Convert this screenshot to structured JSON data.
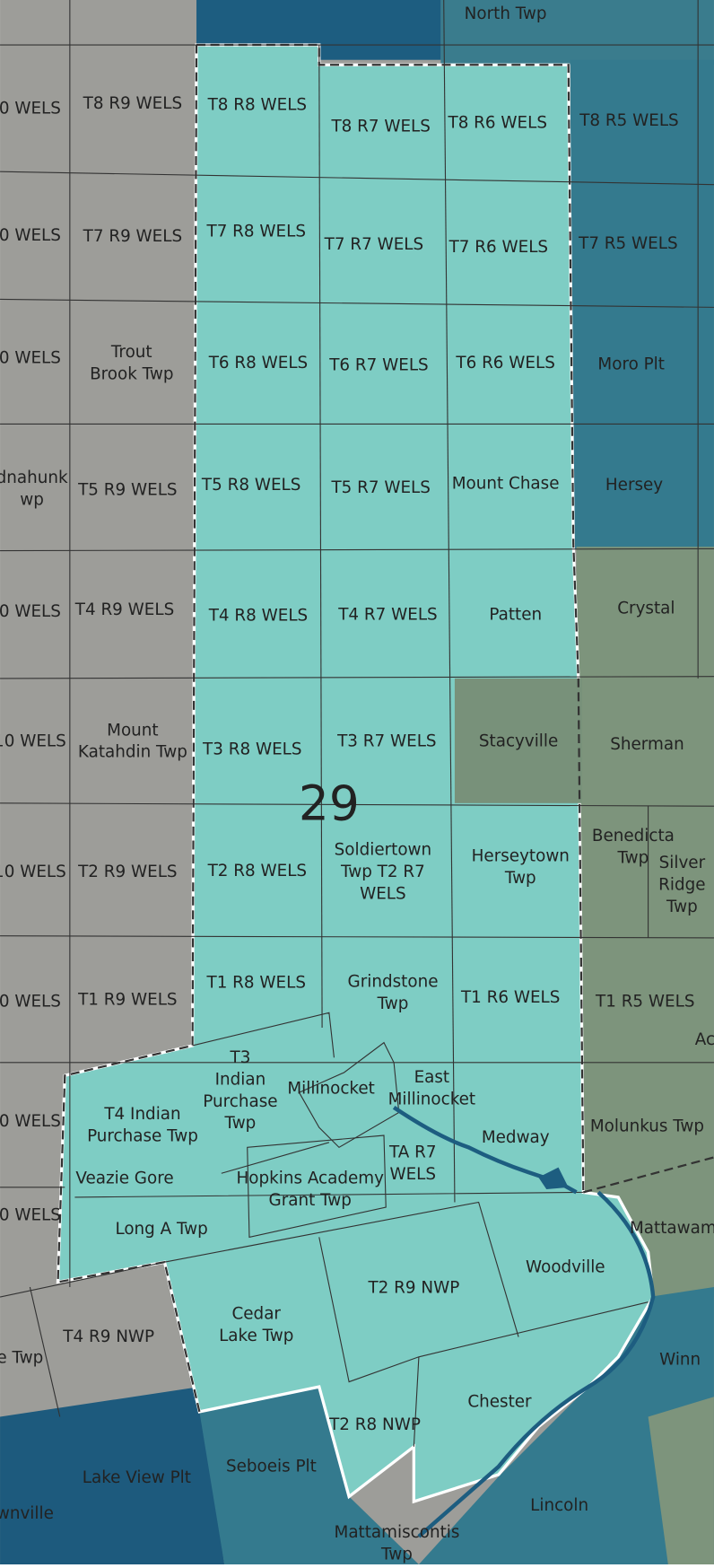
{
  "district_label": "29",
  "labels": [
    [
      "North Twp"
    ],
    [
      "0 WELS"
    ],
    [
      "0 WELS"
    ],
    [
      "0 WELS"
    ],
    [
      "dnahunk",
      "wp"
    ],
    [
      "0 WELS"
    ],
    [
      "10 WELS"
    ],
    [
      "10 WELS"
    ],
    [
      "0 WELS"
    ],
    [
      "0 WELS"
    ],
    [
      "0 WELS"
    ],
    [
      "e Twp"
    ],
    [
      "wnville"
    ],
    [
      "T8 R9 WELS"
    ],
    [
      "T7 R9 WELS"
    ],
    [
      "Trout",
      "Brook Twp"
    ],
    [
      "T5 R9 WELS"
    ],
    [
      "T4 R9 WELS"
    ],
    [
      "Mount",
      "Katahdin Twp"
    ],
    [
      "T2 R9 WELS"
    ],
    [
      "T1 R9 WELS"
    ],
    [
      "T8 R8 WELS"
    ],
    [
      "T8 R7 WELS"
    ],
    [
      "T8 R6 WELS"
    ],
    [
      "T7 R8 WELS"
    ],
    [
      "T7 R7 WELS"
    ],
    [
      "T7 R6 WELS"
    ],
    [
      "T6 R8 WELS"
    ],
    [
      "T6 R7 WELS"
    ],
    [
      "T6 R6 WELS"
    ],
    [
      "T5 R8 WELS"
    ],
    [
      "T5 R7 WELS"
    ],
    [
      "Mount Chase"
    ],
    [
      "T4 R8 WELS"
    ],
    [
      "T4 R7 WELS"
    ],
    [
      "Patten"
    ],
    [
      "T3 R8 WELS"
    ],
    [
      "T3 R7 WELS"
    ],
    [
      "Stacyville"
    ],
    [
      "T2 R8 WELS"
    ],
    [
      "Soldiertown",
      "Twp T2 R7",
      "WELS"
    ],
    [
      "Herseytown",
      "Twp"
    ],
    [
      "T1 R8 WELS"
    ],
    [
      "Grindstone",
      "Twp"
    ],
    [
      "T1 R6 WELS"
    ],
    [
      "T3",
      "Indian",
      "Purchase",
      "Twp"
    ],
    [
      "T4 Indian",
      "Purchase Twp"
    ],
    [
      "Millinocket"
    ],
    [
      "East",
      "Millinocket"
    ],
    [
      "Medway"
    ],
    [
      "TA R7",
      "WELS"
    ],
    [
      "Veazie Gore"
    ],
    [
      "Hopkins Academy",
      "Grant Twp"
    ],
    [
      "Long A Twp"
    ],
    [
      "Woodville"
    ],
    [
      "T2 R9 NWP"
    ],
    [
      "Cedar",
      "Lake Twp"
    ],
    [
      "T4 R9 NWP"
    ],
    [
      "Chester"
    ],
    [
      "T2 R8 NWP"
    ],
    [
      "Seboeis Plt"
    ],
    [
      "Lake View Plt"
    ],
    [
      "Lincoln"
    ],
    [
      "Mattamiscontis",
      "Twp"
    ],
    [
      "Winn"
    ],
    [
      "Mattawam"
    ],
    [
      "Molunkus Twp"
    ],
    [
      "T1 R5 WELS"
    ],
    [
      "Ac"
    ],
    [
      "Benedicta",
      "Twp"
    ],
    [
      "Silver",
      "Ridge",
      "Twp"
    ],
    [
      "Sherman"
    ],
    [
      "Crystal"
    ],
    [
      "Hersey"
    ],
    [
      "Moro Plt"
    ],
    [
      "T7 R5 WELS"
    ],
    [
      "T8 R5 WELS"
    ]
  ]
}
